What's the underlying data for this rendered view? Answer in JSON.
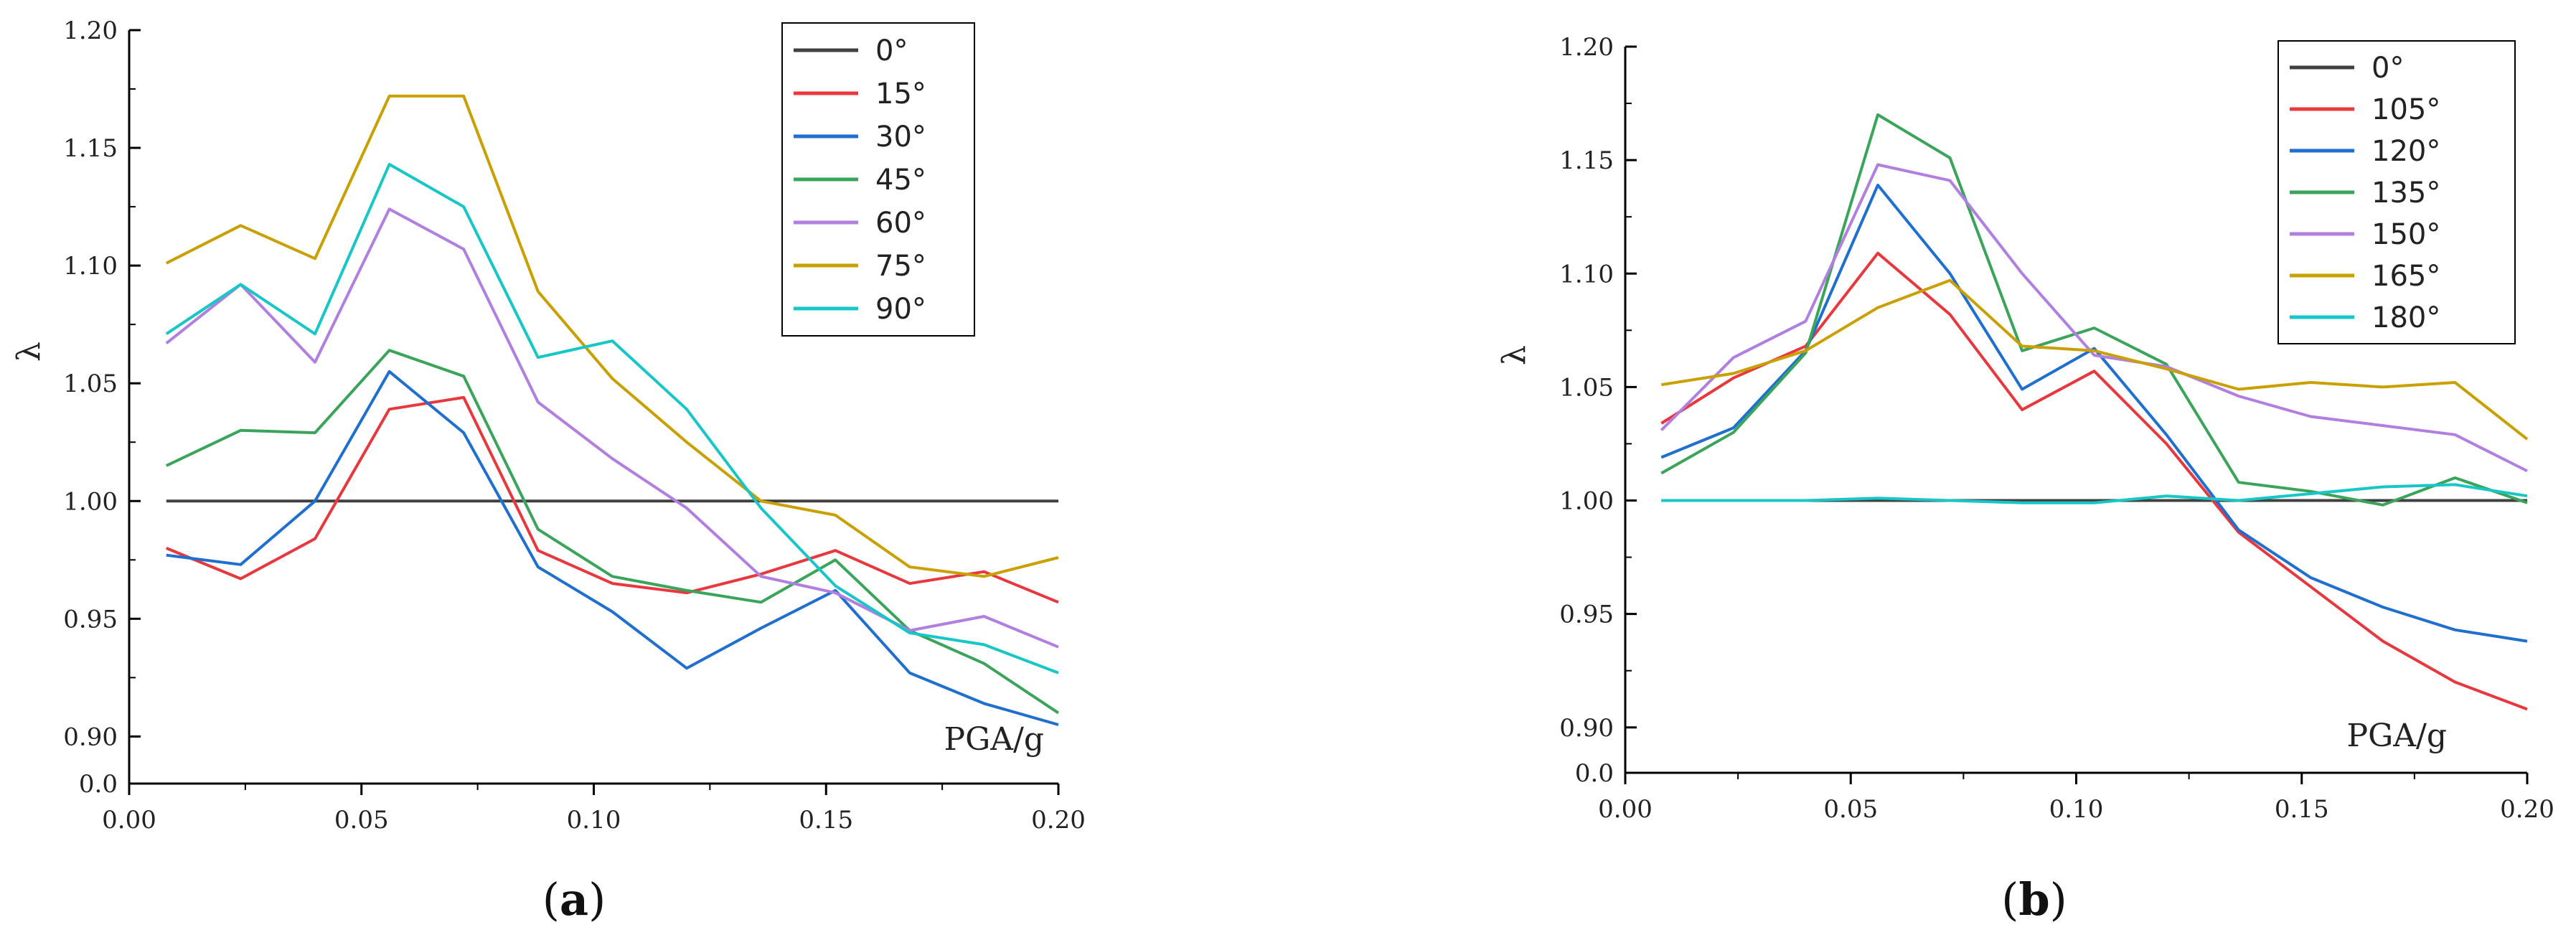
{
  "chart_data": [
    {
      "type": "line",
      "panel": "(a)",
      "panel_letter": "a",
      "ylabel": "λ",
      "annotation": "PGA/g",
      "xlim": [
        0.0,
        0.2
      ],
      "ylim": [
        0.88,
        1.2
      ],
      "x_ticks": [
        "0.00",
        "0.05",
        "0.10",
        "0.15",
        "0.20"
      ],
      "y_ticks": [
        {
          "v": 0.9,
          "t": "0.90"
        },
        {
          "v": 0.95,
          "t": "0.95"
        },
        {
          "v": 1.0,
          "t": "1.00"
        },
        {
          "v": 1.05,
          "t": "1.05"
        },
        {
          "v": 1.1,
          "t": "1.10"
        },
        {
          "v": 1.15,
          "t": "1.15"
        },
        {
          "v": 1.2,
          "t": "1.20"
        }
      ],
      "y_origin_label": "0.0",
      "legend_position": "top-right",
      "x": [
        0.008,
        0.024,
        0.04,
        0.056,
        0.072,
        0.088,
        0.104,
        0.12,
        0.136,
        0.152,
        0.168,
        0.184,
        0.2
      ],
      "series": [
        {
          "name": "0°",
          "color": "#404040",
          "values": [
            1.0,
            1.0,
            1.0,
            1.0,
            1.0,
            1.0,
            1.0,
            1.0,
            1.0,
            1.0,
            1.0,
            1.0,
            1.0
          ]
        },
        {
          "name": "15°",
          "color": "#e8383d",
          "values": [
            0.98,
            0.967,
            0.984,
            1.039,
            1.044,
            0.979,
            0.965,
            0.961,
            0.969,
            0.979,
            0.965,
            0.97,
            0.957
          ]
        },
        {
          "name": "30°",
          "color": "#1f6fd1",
          "values": [
            0.977,
            0.973,
            1.0,
            1.055,
            1.029,
            0.972,
            0.953,
            0.929,
            0.946,
            0.962,
            0.927,
            0.914,
            0.905
          ]
        },
        {
          "name": "45°",
          "color": "#3aa55a",
          "values": [
            1.015,
            1.03,
            1.029,
            1.064,
            1.053,
            0.988,
            0.968,
            0.962,
            0.957,
            0.975,
            0.945,
            0.931,
            0.91
          ]
        },
        {
          "name": "60°",
          "color": "#b07fe0",
          "values": [
            1.067,
            1.092,
            1.059,
            1.124,
            1.107,
            1.042,
            1.018,
            0.997,
            0.968,
            0.961,
            0.945,
            0.951,
            0.938
          ]
        },
        {
          "name": "75°",
          "color": "#c9a000",
          "values": [
            1.101,
            1.117,
            1.103,
            1.172,
            1.172,
            1.089,
            1.052,
            1.025,
            1.0,
            0.994,
            0.972,
            0.968,
            0.976
          ]
        },
        {
          "name": "90°",
          "color": "#17c6c6",
          "values": [
            1.071,
            1.092,
            1.071,
            1.143,
            1.125,
            1.061,
            1.068,
            1.039,
            0.997,
            0.964,
            0.944,
            0.939,
            0.927
          ]
        }
      ]
    },
    {
      "type": "line",
      "panel": "(b)",
      "panel_letter": "b",
      "ylabel": "λ",
      "annotation": "PGA/g",
      "xlim": [
        0.0,
        0.2
      ],
      "ylim": [
        0.88,
        1.2
      ],
      "x_ticks": [
        "0.00",
        "0.05",
        "0.10",
        "0.15",
        "0.20"
      ],
      "y_ticks": [
        {
          "v": 0.9,
          "t": "0.90"
        },
        {
          "v": 0.95,
          "t": "0.95"
        },
        {
          "v": 1.0,
          "t": "1.00"
        },
        {
          "v": 1.05,
          "t": "1.05"
        },
        {
          "v": 1.1,
          "t": "1.10"
        },
        {
          "v": 1.15,
          "t": "1.15"
        },
        {
          "v": 1.2,
          "t": "1.20"
        }
      ],
      "y_origin_label": "0.0",
      "legend_position": "top-right",
      "x": [
        0.008,
        0.024,
        0.04,
        0.056,
        0.072,
        0.088,
        0.104,
        0.12,
        0.136,
        0.152,
        0.168,
        0.184,
        0.2
      ],
      "series": [
        {
          "name": "0°",
          "color": "#404040",
          "values": [
            1.0,
            1.0,
            1.0,
            1.0,
            1.0,
            1.0,
            1.0,
            1.0,
            1.0,
            1.0,
            1.0,
            1.0,
            1.0
          ]
        },
        {
          "name": "105°",
          "color": "#e8383d",
          "values": [
            1.034,
            1.054,
            1.068,
            1.109,
            1.082,
            1.04,
            1.057,
            1.025,
            0.986,
            0.962,
            0.938,
            0.92,
            0.908
          ]
        },
        {
          "name": "120°",
          "color": "#1f6fd1",
          "values": [
            1.019,
            1.032,
            1.066,
            1.139,
            1.1,
            1.049,
            1.067,
            1.029,
            0.987,
            0.966,
            0.953,
            0.943,
            0.938
          ]
        },
        {
          "name": "135°",
          "color": "#3aa55a",
          "values": [
            1.012,
            1.03,
            1.065,
            1.17,
            1.151,
            1.066,
            1.076,
            1.06,
            1.008,
            1.004,
            0.998,
            1.01,
            0.999
          ]
        },
        {
          "name": "150°",
          "color": "#b07fe0",
          "values": [
            1.031,
            1.063,
            1.079,
            1.148,
            1.141,
            1.1,
            1.064,
            1.059,
            1.046,
            1.037,
            1.033,
            1.029,
            1.013
          ]
        },
        {
          "name": "165°",
          "color": "#c9a000",
          "values": [
            1.051,
            1.056,
            1.066,
            1.085,
            1.097,
            1.068,
            1.066,
            1.058,
            1.049,
            1.052,
            1.05,
            1.052,
            1.027
          ]
        },
        {
          "name": "180°",
          "color": "#17c6c6",
          "values": [
            1.0,
            1.0,
            1.0,
            1.001,
            1.0,
            0.999,
            0.999,
            1.002,
            1.0,
            1.003,
            1.006,
            1.007,
            1.002
          ]
        }
      ]
    }
  ]
}
